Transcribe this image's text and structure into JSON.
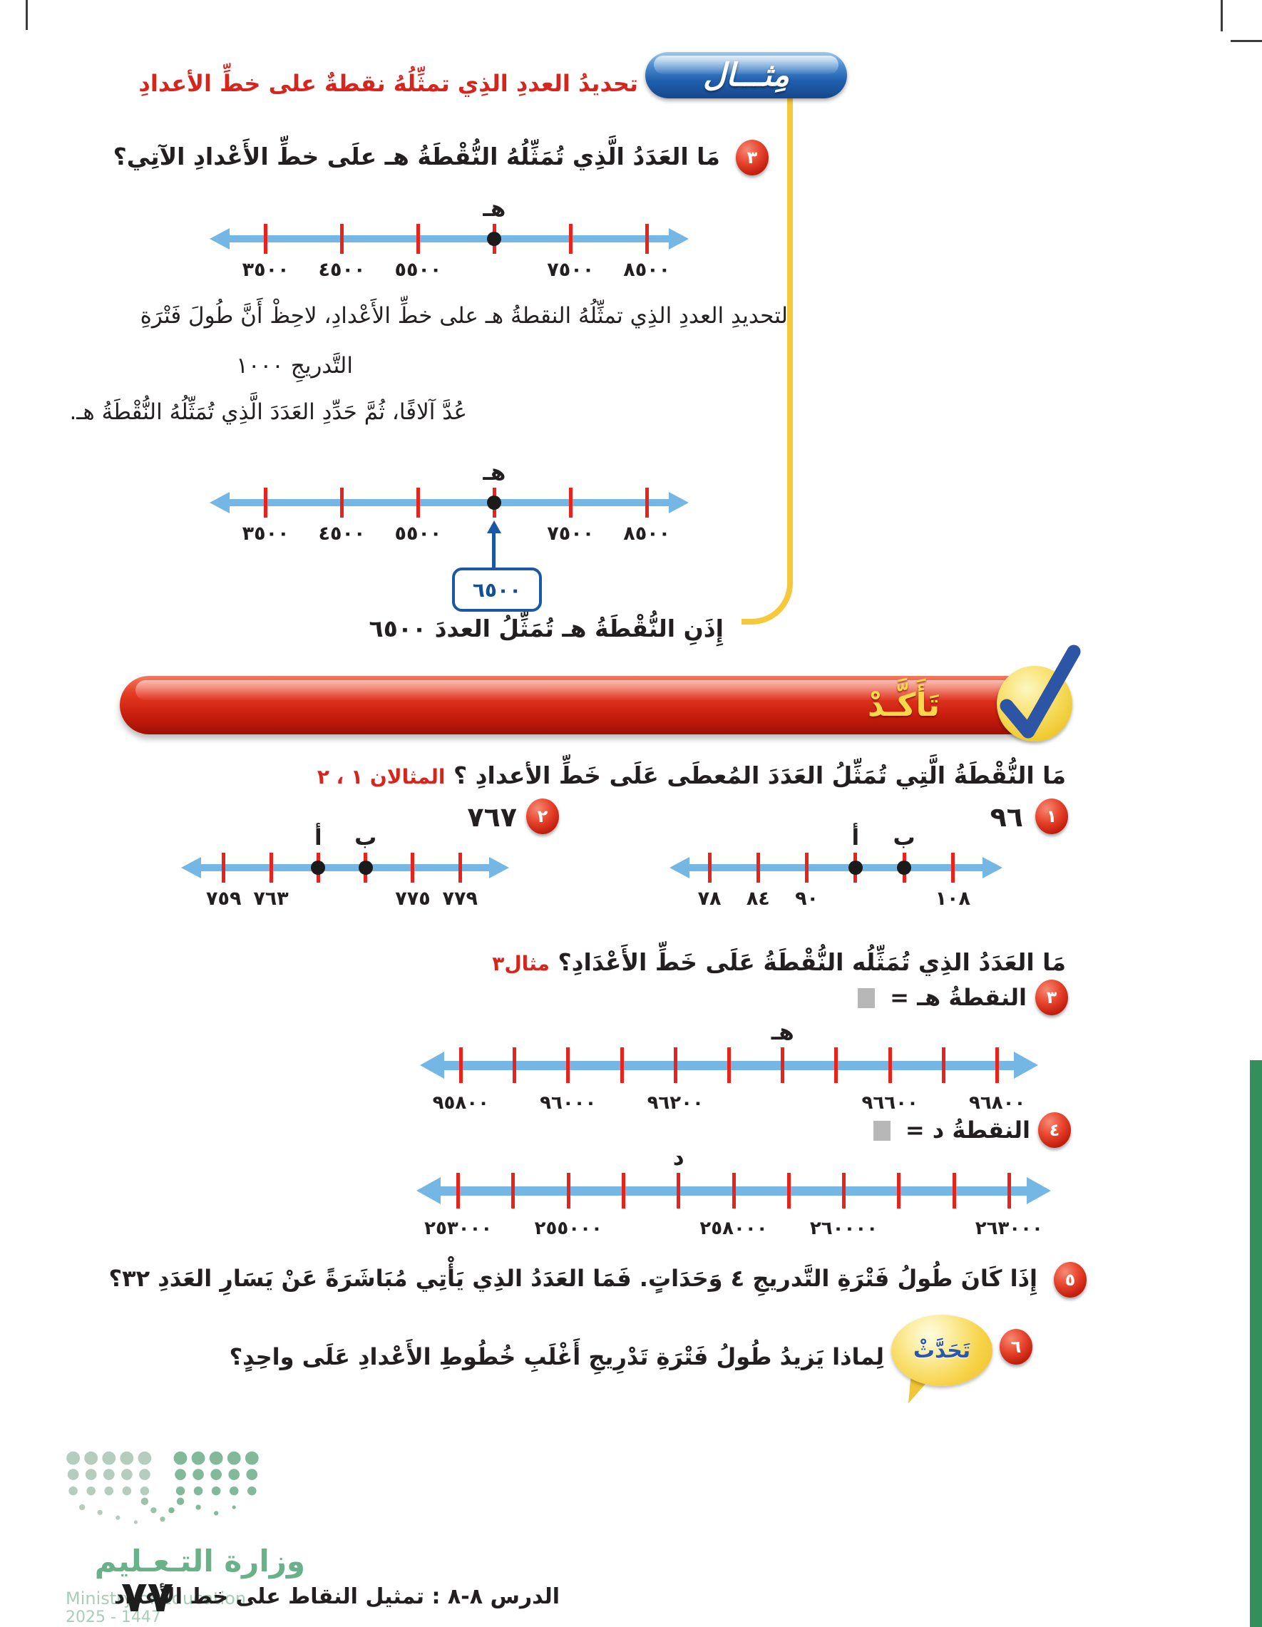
{
  "example": {
    "badge_label": "مِثـــال",
    "title": "تحديدُ العددِ الذِي تمثِّلُهُ نقطةٌ على خطِّ الأعدادِ",
    "number": "٣",
    "question": "مَا العَدَدُ الَّذِي تُمَثِّلُهُ النُّقْطَةُ هـ علَى خطِّ الأَعْدادِ الآتِي؟",
    "para_line1": "لتحديدِ العددِ الذِي تمثِّلُهُ النقطةُ هـ على خطِّ الأَعْدادِ، لاحِظْ أَنَّ طُولَ فَتْرَةِ",
    "para_line2": "التَّدريجِ ١٠٠٠",
    "para_line3": "عُدَّ آلافًا، ثُمَّ حَدِّدِ العَدَدَ الَّذِي تُمَثِّلُهُ النُّقْطَةُ هـ.",
    "answer_value": "٦٥٠٠",
    "conclusion": "إِذَنِ النُّقْطَةُ هـ تُمَثِّلُ العددَ ٦٥٠٠"
  },
  "check": {
    "banner_label": "تَأَكَّـدْ",
    "q1_text": "مَا النُّقْطَةُ الَّتِي تُمَثِّلُ العَدَدَ المُعطَى عَلَى خَطِّ الأعدادِ ؟",
    "q1_ref": "المثالان ١ ، ٢",
    "q2_text": "مَا العَدَدُ الذِي تُمَثِّلُه النُّقْطَةُ عَلَى خَطِّ الأَعْدَادِ؟",
    "q2_ref": "مثال٣",
    "ex1": {
      "number": "١",
      "value": "٩٦"
    },
    "ex2": {
      "number": "٢",
      "value": "٧٦٧"
    },
    "ex3": {
      "number": "٣",
      "label": "النقطةُ هـ ="
    },
    "ex4": {
      "number": "٤",
      "label": "النقطةُ د ="
    },
    "ex5": {
      "number": "٥",
      "text": "إِذَا كَانَ طُولُ فَتْرَةِ التَّدريجِ ٤ وَحَدَاتٍ. فَمَا العَدَدُ الذِي يَأْتِي مُبَاشَرَةً عَنْ يَسَارِ العَدَدِ ٣٢؟"
    },
    "ex6": {
      "number": "٦",
      "bubble_label": "تَحَدَّثْ",
      "text": "لِماذا يَزيدُ طُولُ فَتْرَةِ تَدْرِيجِ أَغْلَبِ خُطُوطِ الأَعْدادِ عَلَى واحِدٍ؟"
    }
  },
  "number_lines": {
    "example": {
      "type": "number_line",
      "ticks": [
        "٣٥٠٠",
        "٤٥٠٠",
        "٥٥٠٠",
        "",
        "٧٥٠٠",
        "٨٥٠٠"
      ],
      "points": [
        {
          "tick": 3,
          "label": "هـ",
          "dot": true
        }
      ]
    },
    "ex1": {
      "type": "number_line",
      "ticks": [
        "٧٨",
        "٨٤",
        "٩٠",
        "",
        "",
        "١٠٨"
      ],
      "points": [
        {
          "tick": 3,
          "label": "أ",
          "dot": true
        },
        {
          "tick": 4,
          "label": "ب",
          "dot": true
        }
      ]
    },
    "ex2": {
      "type": "number_line",
      "ticks": [
        "٧٥٩",
        "٧٦٣",
        "",
        "",
        "٧٧٥",
        "٧٧٩"
      ],
      "points": [
        {
          "tick": 2,
          "label": "أ",
          "dot": true
        },
        {
          "tick": 3,
          "label": "ب",
          "dot": true
        }
      ]
    },
    "ex3": {
      "type": "number_line",
      "ticks": [
        "٩٥٨٠٠",
        "",
        "٩٦٠٠٠",
        "",
        "٩٦٢٠٠",
        "",
        "",
        "",
        "٩٦٦٠٠",
        "",
        "٩٦٨٠٠"
      ],
      "points": [
        {
          "tick": 6,
          "label": "هـ",
          "dot": false
        }
      ]
    },
    "ex4": {
      "type": "number_line",
      "ticks": [
        "٢٥٣٠٠٠",
        "",
        "٢٥٥٠٠٠",
        "",
        "",
        "٢٥٨٠٠٠",
        "",
        "٢٦٠٠٠٠",
        "",
        "",
        "٢٦٣٠٠٠"
      ],
      "points": [
        {
          "tick": 4,
          "label": "د",
          "dot": false
        }
      ]
    }
  },
  "footer": {
    "ministry_ar": "وزارة التـعـليم",
    "ministry_en": "Ministry of Education",
    "years": "2025 - 1447",
    "page_number": "٧٧",
    "lesson": "الدرس ٨-٨ :  تمثيل النقاط على خط الأعداد"
  },
  "colors": {
    "accent_red": "#d7251d",
    "line_blue": "#74b7e5",
    "tick_red": "#e8231c",
    "banner_yellow": "#f8d74a",
    "yellow": "#f6c83c",
    "green_bar": "#33905c"
  }
}
